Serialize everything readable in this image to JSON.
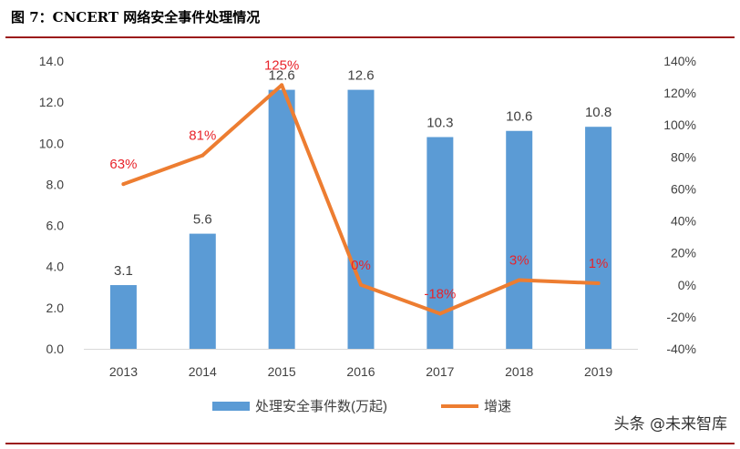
{
  "figure": {
    "title": "图 7：CNCERT 网络安全事件处理情况"
  },
  "watermark": "头条 @未来智库",
  "chart_data": {
    "type": "bar+line",
    "categories": [
      "2013",
      "2014",
      "2015",
      "2016",
      "2017",
      "2018",
      "2019"
    ],
    "series": [
      {
        "name": "处理安全事件数(万起)",
        "type": "bar",
        "axis": "left",
        "values": [
          3.1,
          5.6,
          12.6,
          12.6,
          10.3,
          10.6,
          10.8
        ],
        "labels": [
          "3.1",
          "5.6",
          "12.6",
          "12.6",
          "10.3",
          "10.6",
          "10.8"
        ],
        "color": "#5b9bd5"
      },
      {
        "name": "增速",
        "type": "line",
        "axis": "right",
        "values": [
          63,
          81,
          125,
          0,
          -18,
          3,
          1
        ],
        "labels": [
          "63%",
          "81%",
          "125%",
          "0%",
          "-18%",
          "3%",
          "1%"
        ],
        "color": "#ed7d31",
        "label_color": "#e8242b"
      }
    ],
    "y_left": {
      "range": [
        0,
        14
      ],
      "ticks": [
        "0.0",
        "2.0",
        "4.0",
        "6.0",
        "8.0",
        "10.0",
        "12.0",
        "14.0"
      ]
    },
    "y_right": {
      "range": [
        -40,
        140
      ],
      "ticks": [
        "-40%",
        "-20%",
        "0%",
        "20%",
        "40%",
        "60%",
        "80%",
        "100%",
        "120%",
        "140%"
      ]
    },
    "grid": false,
    "legend_position": "bottom"
  }
}
